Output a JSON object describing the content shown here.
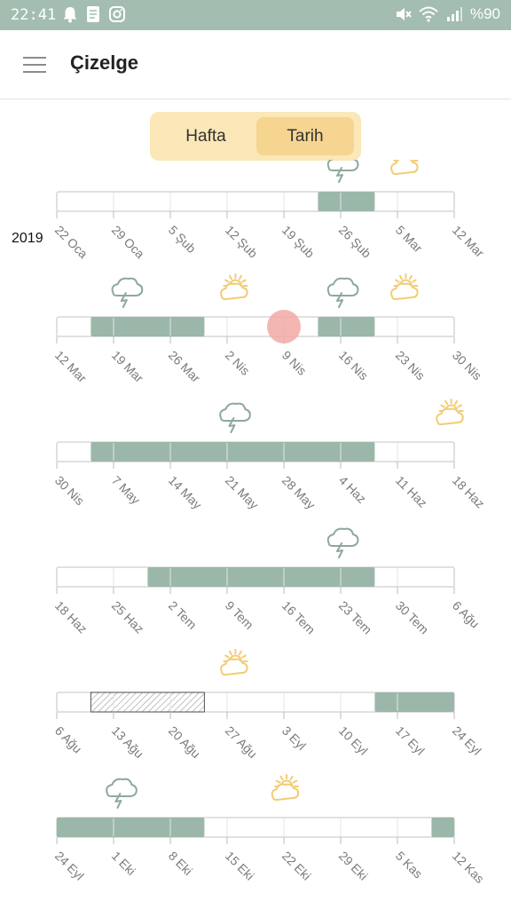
{
  "status_bar": {
    "time": "22:41",
    "battery": "%90",
    "left_icons": [
      "bell-icon",
      "note-icon",
      "instagram-icon"
    ],
    "right_icons": [
      "mute-icon",
      "wifi-icon",
      "signal-icon"
    ]
  },
  "app_bar": {
    "title": "Çizelge",
    "menu_icon": "hamburger-menu-icon"
  },
  "segmented": {
    "options": [
      "Hafta",
      "Tarih"
    ],
    "selected": "Tarih"
  },
  "year": "2019",
  "colors": {
    "status_bar": "#a3bdb1",
    "filled_week": "#9bb7aa",
    "sun": "#f2cc73",
    "cloud": "#8ea89d",
    "today_marker": "#f2a9a5",
    "segment_bg": "#fbe7b7",
    "segment_selected": "#f6d591"
  },
  "rows": [
    {
      "ticks": [
        "22 Oca",
        "29 Oca",
        "5 Şub",
        "12 Şub",
        "19 Şub",
        "26 Şub",
        "5 Mar",
        "12 Mar"
      ],
      "filled": [
        [
          4.6,
          5.6
        ]
      ],
      "hatched": [],
      "icons": [
        {
          "type": "storm-cloud",
          "at": 5.0
        },
        {
          "type": "sun-cloud",
          "at": 6.1
        }
      ],
      "today_at": null
    },
    {
      "ticks": [
        "12 Mar",
        "19 Mar",
        "26 Mar",
        "2 Nis",
        "9 Nis",
        "16 Nis",
        "23 Nis",
        "30 Nis"
      ],
      "filled": [
        [
          0.6,
          2.6
        ],
        [
          4.6,
          5.6
        ]
      ],
      "hatched": [],
      "icons": [
        {
          "type": "storm-cloud",
          "at": 1.2
        },
        {
          "type": "sun-cloud",
          "at": 3.1
        },
        {
          "type": "storm-cloud",
          "at": 5.0
        },
        {
          "type": "sun-cloud",
          "at": 6.1
        }
      ],
      "today_at": 4.0
    },
    {
      "ticks": [
        "30 Nis",
        "7 May",
        "14 May",
        "21 May",
        "28 May",
        "4 Haz",
        "11 Haz",
        "18 Haz"
      ],
      "filled": [
        [
          0.6,
          5.6
        ]
      ],
      "hatched": [],
      "icons": [
        {
          "type": "storm-cloud",
          "at": 3.1
        },
        {
          "type": "sun-cloud",
          "at": 6.9
        }
      ],
      "today_at": null
    },
    {
      "ticks": [
        "18 Haz",
        "25 Haz",
        "2 Tem",
        "9 Tem",
        "16 Tem",
        "23 Tem",
        "30 Tem",
        "6 Ağu"
      ],
      "filled": [
        [
          1.6,
          5.6
        ]
      ],
      "hatched": [],
      "icons": [
        {
          "type": "storm-cloud",
          "at": 5.0
        }
      ],
      "today_at": null
    },
    {
      "ticks": [
        "6 Ağu",
        "13 Ağu",
        "20 Ağu",
        "27 Ağu",
        "3 Eyl",
        "10 Eyl",
        "17 Eyl",
        "24 Eyl"
      ],
      "filled": [
        [
          5.6,
          7.0
        ]
      ],
      "hatched": [
        [
          0.6,
          2.6
        ]
      ],
      "icons": [
        {
          "type": "sun-cloud",
          "at": 3.1
        }
      ],
      "today_at": null
    },
    {
      "ticks": [
        "24 Eyl",
        "1 Eki",
        "8 Eki",
        "15 Eki",
        "22 Eki",
        "29 Eki",
        "5 Kas",
        "12 Kas"
      ],
      "filled": [
        [
          0.0,
          2.6
        ],
        [
          6.6,
          7.0
        ]
      ],
      "hatched": [],
      "icons": [
        {
          "type": "storm-cloud",
          "at": 1.1
        },
        {
          "type": "sun-cloud",
          "at": 4.0
        }
      ],
      "today_at": null
    }
  ]
}
